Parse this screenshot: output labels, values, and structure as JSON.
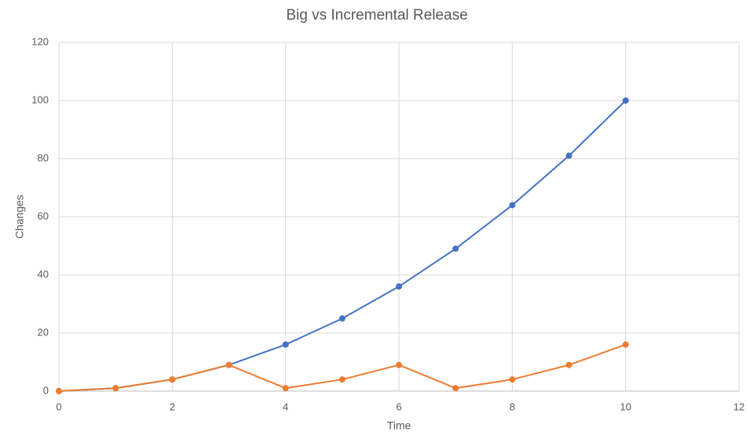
{
  "chart_data": {
    "type": "line",
    "title": "Big vs Incremental Release",
    "x_label": "Time",
    "y_label": "Changes",
    "x": [
      0,
      1,
      2,
      3,
      4,
      5,
      6,
      7,
      8,
      9,
      10
    ],
    "series": [
      {
        "color": "#4472c4",
        "values": [
          0,
          1,
          4,
          9,
          16,
          25,
          36,
          49,
          64,
          81,
          100
        ]
      },
      {
        "color": "#ed7d31",
        "values": [
          0,
          1,
          4,
          9,
          1,
          4,
          9,
          1,
          4,
          9,
          16
        ]
      }
    ],
    "xlim": [
      0,
      12
    ],
    "xticks": [
      0,
      2,
      4,
      6,
      8,
      10,
      12
    ],
    "ylim": [
      0,
      120
    ],
    "yticks": [
      0,
      20,
      40,
      60,
      80,
      100,
      120
    ],
    "grid": true,
    "markers": true
  }
}
